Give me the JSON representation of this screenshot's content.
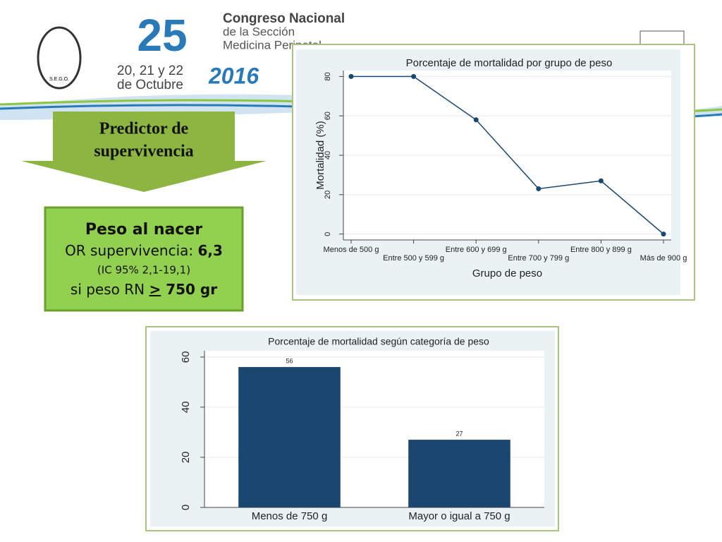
{
  "header": {
    "anniversary": "25",
    "congress_line1": "Congreso Nacional",
    "congress_line2": "de la Sección",
    "congress_line3": "Medicina Perinatal",
    "dates_line1": "20, 21 y 22",
    "dates_line2": "de Octubre",
    "year": "2016",
    "logo_text": "S.E.G.O."
  },
  "arrow_box": {
    "text_line1": "Predictor de",
    "text_line2": "supervivencia"
  },
  "info_box": {
    "title": "Peso al nacer",
    "or_label": "OR supervivencia: ",
    "or_value": "6,3",
    "ci": "(IC 95% 2,1-19,1)",
    "condition_prefix": "si peso RN ",
    "condition_sign": ">",
    "condition_suffix": " 750 gr"
  },
  "chart_data": [
    {
      "type": "line",
      "title": "Porcentaje de mortalidad por grupo de peso",
      "x_label": "Grupo de peso",
      "y_label": "Mortalidad (%)",
      "categories": [
        "Menos de 500 g",
        "Entre 500 y 599 g",
        "Entre 600 y 699 g",
        "Entre 700 y 799 g",
        "Entre 800 y 899 g",
        "Más de 900 g"
      ],
      "values": [
        80,
        80,
        58,
        23,
        27,
        0
      ],
      "color": "#1a476f",
      "ylim": [
        -3,
        83
      ],
      "yticks": [
        0,
        20,
        40,
        60,
        80
      ],
      "grid": true
    },
    {
      "type": "bar",
      "title": "Porcentaje de mortalidad según categoría de peso",
      "categories": [
        "Menos de 750 g",
        "Mayor o igual a 750 g"
      ],
      "values": [
        56,
        27
      ],
      "color": "#1a476f",
      "ylim": [
        0,
        62.5
      ],
      "yticks": [
        0,
        20,
        40,
        60
      ],
      "grid": true
    }
  ]
}
